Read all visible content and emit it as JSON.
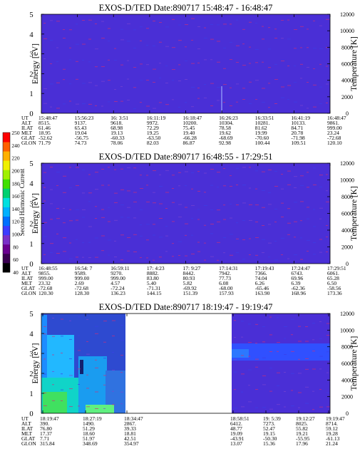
{
  "figure": {
    "left_axis_label": "Energy [eV]",
    "right_axis_label": "Temperature [K]",
    "colorbar_label": "Second Harmonic Current",
    "colorbar_ticks": [
      "40",
      "60",
      "80",
      "100",
      "120",
      "140",
      "160",
      "180",
      "200",
      "220",
      "240",
      "250"
    ],
    "colorbar_colors": [
      "#000000",
      "#3a0050",
      "#6a0090",
      "#7a30c8",
      "#3c3cff",
      "#0070ff",
      "#00b0ff",
      "#00e0e0",
      "#00d070",
      "#40e000",
      "#a0f000",
      "#f0f000",
      "#ffb000",
      "#ff6000",
      "#ff0000"
    ],
    "background_color": "#4a2fd6",
    "row_labels": [
      "UT",
      "ALT",
      "ILAT",
      "MLT",
      "GLAT",
      "GLON"
    ]
  },
  "chart_data": [
    {
      "type": "heatmap",
      "title": "EXOS-D/TED   Date:890717   15:48:47 - 16:48:47",
      "y_left_label": "Energy [eV]",
      "y_left_range": [
        0,
        5
      ],
      "y_left_ticks": [
        "0",
        "1",
        "2",
        "3",
        "4",
        "5"
      ],
      "y_right_label": "Temperature [K]",
      "y_right_range": [
        0,
        12000
      ],
      "y_right_ticks": [
        "0",
        "2000",
        "4000",
        "6000",
        "8000",
        "10000",
        "12000"
      ],
      "glyph_rows": 5,
      "ephemeris": [
        [
          "15:48:47",
          "8515.",
          "61.46",
          "18.95",
          "-52.62",
          "71.79"
        ],
        [
          "15:56:23",
          "9137.",
          "65.43",
          "19.04",
          "-56.75",
          "74.73"
        ],
        [
          "16: 3:51",
          "9618.",
          "68.98",
          "19.13",
          "-60.33",
          "78.06"
        ],
        [
          "16:11:19",
          "9972.",
          "72.29",
          "19.25",
          "-63.50",
          "82.03"
        ],
        [
          "16:18:47",
          "10200.",
          "75.45",
          "19.40",
          "-66.28",
          "86.87"
        ],
        [
          "16:26:23",
          "10304.",
          "78.58",
          "19.62",
          "-68.69",
          "92.98"
        ],
        [
          "16:33:51",
          "10281.",
          "81.62",
          "19.99",
          "-70.60",
          "100.44"
        ],
        [
          "16:41:19",
          "10133.",
          "84.71",
          "20.78",
          "-71.98",
          "109.51"
        ],
        [
          "16:48:47",
          "9861.",
          "999.00",
          "23.24",
          "-72.68",
          "120.10"
        ]
      ]
    },
    {
      "type": "heatmap",
      "title": "EXOS-D/TED   Date:890717   16:48:55 - 17:29:51",
      "y_left_label": "Energy [eV]",
      "y_left_range": [
        0,
        5
      ],
      "y_left_ticks": [
        "0",
        "1",
        "2",
        "3",
        "4",
        "5"
      ],
      "y_right_label": "Temperature [K]",
      "y_right_range": [
        0,
        12000
      ],
      "y_right_ticks": [
        "0",
        "2000",
        "4000",
        "6000",
        "8000",
        "10000",
        "12000"
      ],
      "glyph_rows": 6,
      "ephemeris": [
        [
          "16:48:55",
          "9855.",
          "999.00",
          "23.32",
          "-72.68",
          "120.30"
        ],
        [
          "16:54: 7",
          "9589.",
          "999.00",
          "2.69",
          "-72.68",
          "128.30"
        ],
        [
          "16:59:11",
          "9270.",
          "999.00",
          "4.57",
          "-72.24",
          "136.23"
        ],
        [
          "17: 4:23",
          "8882.",
          "83.80",
          "5.40",
          "-71.31",
          "144.15"
        ],
        [
          "17: 9:27",
          "8442.",
          "80.93",
          "5.82",
          "-69.92",
          "151.39"
        ],
        [
          "17:14:31",
          "7942.",
          "77.73",
          "6.08",
          "-68.00",
          "157.93"
        ],
        [
          "17:19:43",
          "7366.",
          "74.04",
          "6.26",
          "-65.46",
          "163.90"
        ],
        [
          "17:24:47",
          "6743.",
          "69.96",
          "6.39",
          "-62.36",
          "168.96"
        ],
        [
          "17:29:51",
          "6061.",
          "65.28",
          "6.50",
          "-58.56",
          "173.36"
        ]
      ]
    },
    {
      "type": "heatmap",
      "title": "EXOS-D/TED   Date:890717   18:19:47 - 19:19:47",
      "y_left_label": "Energy [eV]",
      "y_left_range": [
        0,
        5
      ],
      "y_left_ticks": [
        "0",
        "1",
        "2",
        "3",
        "4",
        "5"
      ],
      "y_right_label": "Temperature [K]",
      "y_right_range": [
        0,
        12000
      ],
      "y_right_ticks": [
        "0",
        "2000",
        "4000",
        "6000",
        "8000",
        "10000",
        "12000"
      ],
      "glyph_rows": 6,
      "data_gap": true,
      "ephemeris_left": [
        [
          "18:19:47",
          "390.",
          "76.80",
          "17.37",
          "7.71",
          "315.84"
        ],
        [
          "18:27:19",
          "1490.",
          "51.29",
          "18.60",
          "51.97",
          "348.69"
        ],
        [
          "18:34:47",
          "2867.",
          "39.33",
          "18.81",
          "42.51",
          "354.97"
        ]
      ],
      "ephemeris_right": [
        [
          "18:58:51",
          "6412.",
          "48.77",
          "19.09",
          "-43.91",
          "13.07"
        ],
        [
          "19: 5:39",
          "7273.",
          "52.47",
          "19.15",
          "-50.30",
          "15.36"
        ],
        [
          "19:12:27",
          "8025.",
          "55.82",
          "19.21",
          "-55.95",
          "17.96"
        ],
        [
          "19:19:47",
          "8714.",
          "59.12",
          "19.28",
          "-61.13",
          "21.24"
        ]
      ]
    }
  ]
}
